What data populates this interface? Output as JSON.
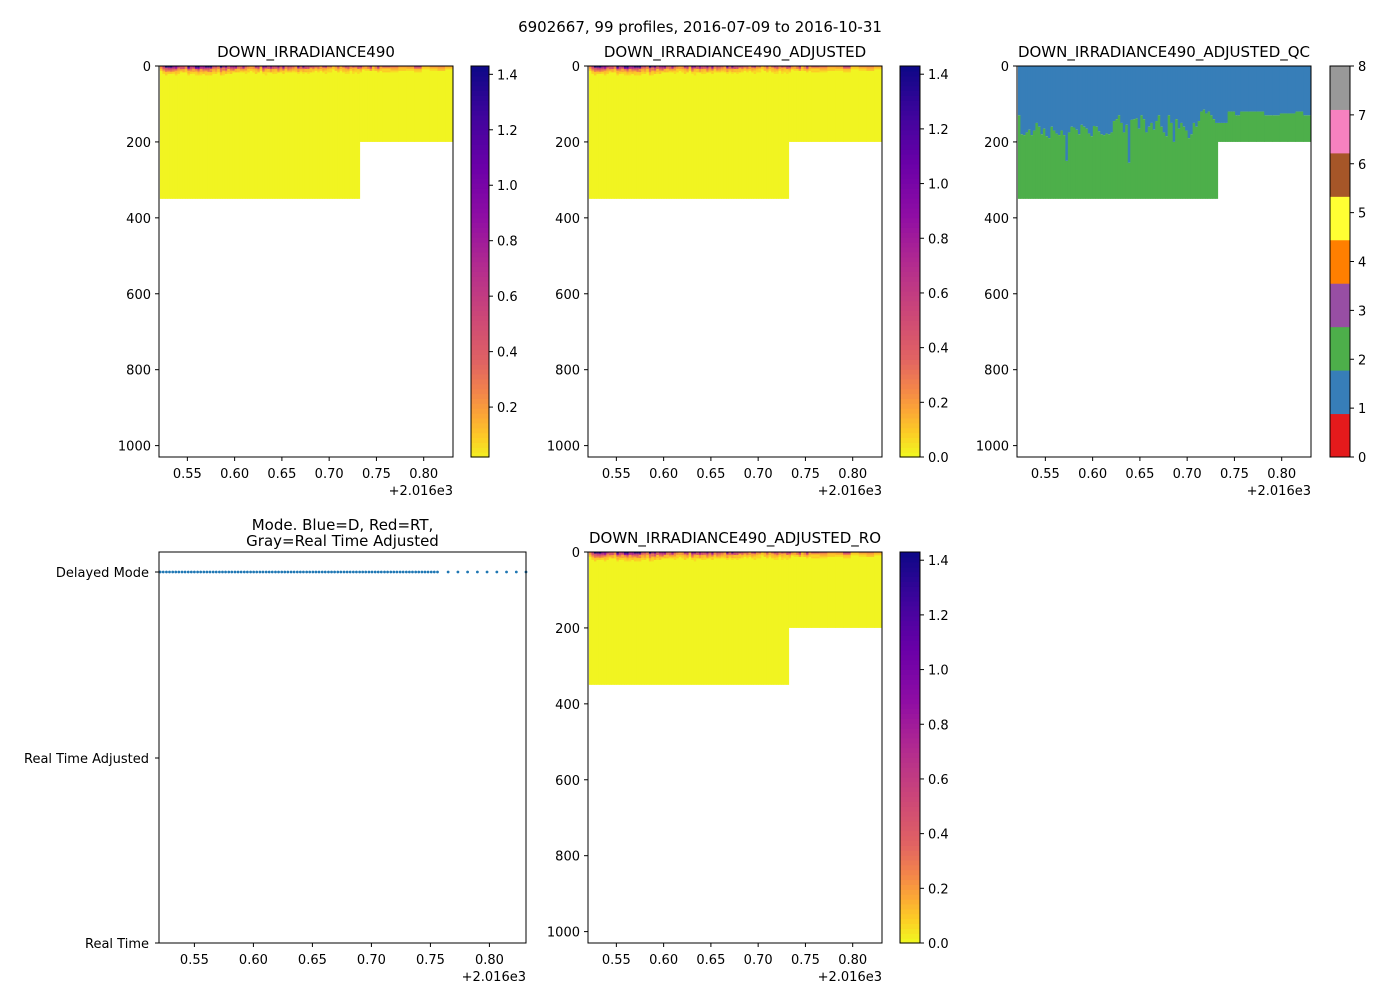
{
  "suptitle": "6902667, 99 profiles, 2016-07-09 to 2016-10-31",
  "chart_data": [
    {
      "id": "p1",
      "type": "heatmap",
      "title": "DOWN_IRRADIANCE490",
      "xlim": [
        0.52,
        0.831
      ],
      "x_offset_label": "+2.016e3",
      "xticks": [
        "0.55",
        "0.60",
        "0.65",
        "0.70",
        "0.75",
        "0.80"
      ],
      "ylim": [
        1030,
        0
      ],
      "yticks": [
        "0",
        "200",
        "400",
        "600",
        "800",
        "1000"
      ],
      "colorbar": {
        "cmap": "plasma_r",
        "range": [
          0.02,
          1.43
        ],
        "ticks": [
          "0.2",
          "0.4",
          "0.6",
          "0.8",
          "1.0",
          "1.2",
          "1.4"
        ]
      }
    },
    {
      "id": "p2",
      "type": "heatmap",
      "title": "DOWN_IRRADIANCE490_ADJUSTED",
      "xlim": [
        0.52,
        0.831
      ],
      "x_offset_label": "+2.016e3",
      "xticks": [
        "0.55",
        "0.60",
        "0.65",
        "0.70",
        "0.75",
        "0.80"
      ],
      "ylim": [
        1030,
        0
      ],
      "yticks": [
        "0",
        "200",
        "400",
        "600",
        "800",
        "1000"
      ],
      "colorbar": {
        "cmap": "plasma_r",
        "range": [
          0.0,
          1.43
        ],
        "ticks": [
          "0.0",
          "0.2",
          "0.4",
          "0.6",
          "0.8",
          "1.0",
          "1.2",
          "1.4"
        ]
      }
    },
    {
      "id": "p3",
      "type": "heatmap",
      "title": "DOWN_IRRADIANCE490_ADJUSTED_QC",
      "xlim": [
        0.52,
        0.831
      ],
      "x_offset_label": "+2.016e3",
      "xticks": [
        "0.55",
        "0.60",
        "0.65",
        "0.70",
        "0.75",
        "0.80"
      ],
      "ylim": [
        1030,
        0
      ],
      "yticks": [
        "0",
        "200",
        "400",
        "600",
        "800",
        "1000"
      ],
      "qc_upper_flag": 1,
      "qc_lower_flag": 2,
      "colorbar": {
        "cmap": "qc",
        "range": [
          0,
          8
        ],
        "ticks": [
          "0",
          "1",
          "2",
          "3",
          "4",
          "5",
          "6",
          "7",
          "8"
        ],
        "colors": [
          "#e41a1c",
          "#377eb8",
          "#4daf4a",
          "#984ea3",
          "#ff7f00",
          "#ffff33",
          "#a65628",
          "#f781bf",
          "#999999"
        ]
      }
    },
    {
      "id": "p4",
      "type": "scatter",
      "title": "Mode. Blue=D, Red=RT,\nGray=Real Time Adjusted",
      "title_lines": [
        "Mode. Blue=D, Red=RT,",
        "Gray=Real Time Adjusted"
      ],
      "xlim": [
        0.52,
        0.831
      ],
      "x_offset_label": "+2.016e3",
      "xticks": [
        "0.55",
        "0.60",
        "0.65",
        "0.70",
        "0.75",
        "0.80"
      ],
      "ycategories": [
        "Delayed Mode",
        "Real Time Adjusted",
        "Real Time"
      ],
      "mode_value": "Delayed Mode",
      "color": "#1f77b4"
    },
    {
      "id": "p5",
      "type": "heatmap",
      "title": "DOWN_IRRADIANCE490_ADJUSTED_RO",
      "xlim": [
        0.52,
        0.831
      ],
      "x_offset_label": "+2.016e3",
      "xticks": [
        "0.55",
        "0.60",
        "0.65",
        "0.70",
        "0.75",
        "0.80"
      ],
      "ylim": [
        1030,
        0
      ],
      "yticks": [
        "0",
        "200",
        "400",
        "600",
        "800",
        "1000"
      ],
      "colorbar": {
        "cmap": "plasma_r",
        "range": [
          0.0,
          1.43
        ],
        "ticks": [
          "0.0",
          "0.2",
          "0.4",
          "0.6",
          "0.8",
          "1.0",
          "1.2",
          "1.4"
        ]
      }
    }
  ],
  "profiles": {
    "dates": [
      0.521,
      0.5236,
      0.5263,
      0.5289,
      0.5316,
      0.5342,
      0.5368,
      0.5395,
      0.5421,
      0.5448,
      0.5474,
      0.55,
      0.5527,
      0.5553,
      0.558,
      0.5606,
      0.5632,
      0.5659,
      0.5685,
      0.5712,
      0.5738,
      0.5764,
      0.5791,
      0.5817,
      0.5844,
      0.587,
      0.5896,
      0.5923,
      0.5949,
      0.5976,
      0.6002,
      0.6028,
      0.6055,
      0.6081,
      0.6108,
      0.6134,
      0.616,
      0.6187,
      0.6213,
      0.624,
      0.6266,
      0.6292,
      0.6319,
      0.6345,
      0.6372,
      0.6398,
      0.6424,
      0.6451,
      0.6477,
      0.6504,
      0.653,
      0.6556,
      0.6583,
      0.6609,
      0.6636,
      0.6662,
      0.6688,
      0.6715,
      0.6741,
      0.6768,
      0.6794,
      0.682,
      0.6847,
      0.6873,
      0.69,
      0.6926,
      0.6952,
      0.6979,
      0.7005,
      0.7032,
      0.7058,
      0.7084,
      0.7111,
      0.7137,
      0.7164,
      0.719,
      0.7216,
      0.7243,
      0.7269,
      0.7296,
      0.7322,
      0.7348,
      0.7375,
      0.7401,
      0.7428,
      0.7454,
      0.748,
      0.7507,
      0.7533,
      0.756,
      0.765,
      0.7733,
      0.7815,
      0.7898,
      0.798,
      0.8063,
      0.8145,
      0.8228,
      0.831
    ],
    "max_depth_before_0.73": 350,
    "max_depth_after_0.73": 200,
    "qc_boundary_depth": [
      130,
      180,
      182,
      175,
      168,
      182,
      170,
      150,
      160,
      180,
      165,
      185,
      190,
      160,
      170,
      178,
      182,
      170,
      182,
      250,
      175,
      160,
      162,
      168,
      180,
      155,
      160,
      165,
      178,
      185,
      158,
      160,
      172,
      180,
      182,
      178,
      180,
      175,
      145,
      140,
      130,
      150,
      175,
      155,
      255,
      142,
      140,
      138,
      165,
      130,
      140,
      175,
      160,
      150,
      168,
      145,
      130,
      160,
      175,
      185,
      130,
      150,
      200,
      140,
      165,
      150,
      160,
      170,
      190,
      180,
      150,
      160,
      145,
      120,
      115,
      125,
      120,
      130,
      140,
      150,
      150,
      150,
      150,
      150,
      120,
      120,
      120,
      130,
      130,
      120,
      120,
      120,
      130,
      130,
      125,
      125,
      120,
      130,
      110
    ],
    "deep_value": 0.01
  }
}
